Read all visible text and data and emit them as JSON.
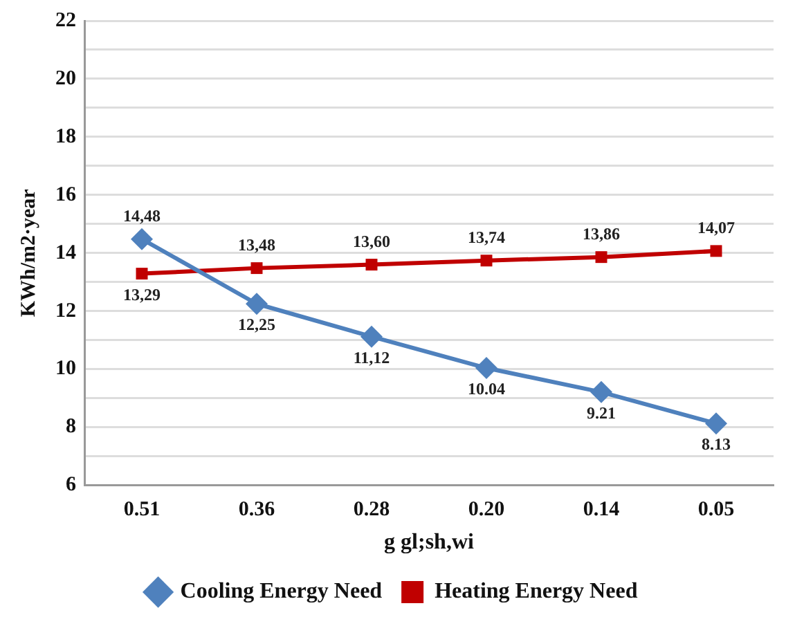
{
  "chart_data": {
    "type": "line",
    "xlabel": "g gl;sh,wi",
    "ylabel": "KWh/m2·year",
    "categories": [
      "0.51",
      "0.36",
      "0.28",
      "0.20",
      "0.14",
      "0.05"
    ],
    "series": [
      {
        "name": "Cooling Energy Need",
        "color": "#4f81bd",
        "marker": "diamond",
        "values": [
          14.48,
          12.25,
          11.12,
          10.04,
          9.21,
          8.13
        ],
        "value_labels": [
          "14,48",
          "12,25",
          "11,12",
          "10.04",
          "9.21",
          "8.13"
        ]
      },
      {
        "name": "Heating Energy Need",
        "color": "#c00000",
        "marker": "square",
        "values": [
          13.29,
          13.48,
          13.6,
          13.74,
          13.86,
          14.07
        ],
        "value_labels": [
          "13,29",
          "13,48",
          "13,60",
          "13,74",
          "13,86",
          "14,07"
        ]
      }
    ],
    "ylim": [
      6,
      22
    ],
    "yticks": [
      6,
      {
        "value": 7,
        "label": null
      },
      8,
      {
        "value": 9,
        "label": null
      },
      10,
      {
        "value": 11,
        "label": null
      },
      12,
      {
        "value": 13,
        "label": null
      },
      14,
      {
        "value": 15,
        "label": null
      },
      16,
      {
        "value": 17,
        "label": null
      },
      18,
      {
        "value": 19,
        "label": null
      },
      20,
      {
        "value": 21,
        "label": null
      },
      22
    ],
    "grid": "y",
    "legend": "bottom",
    "line_style": "solid"
  }
}
